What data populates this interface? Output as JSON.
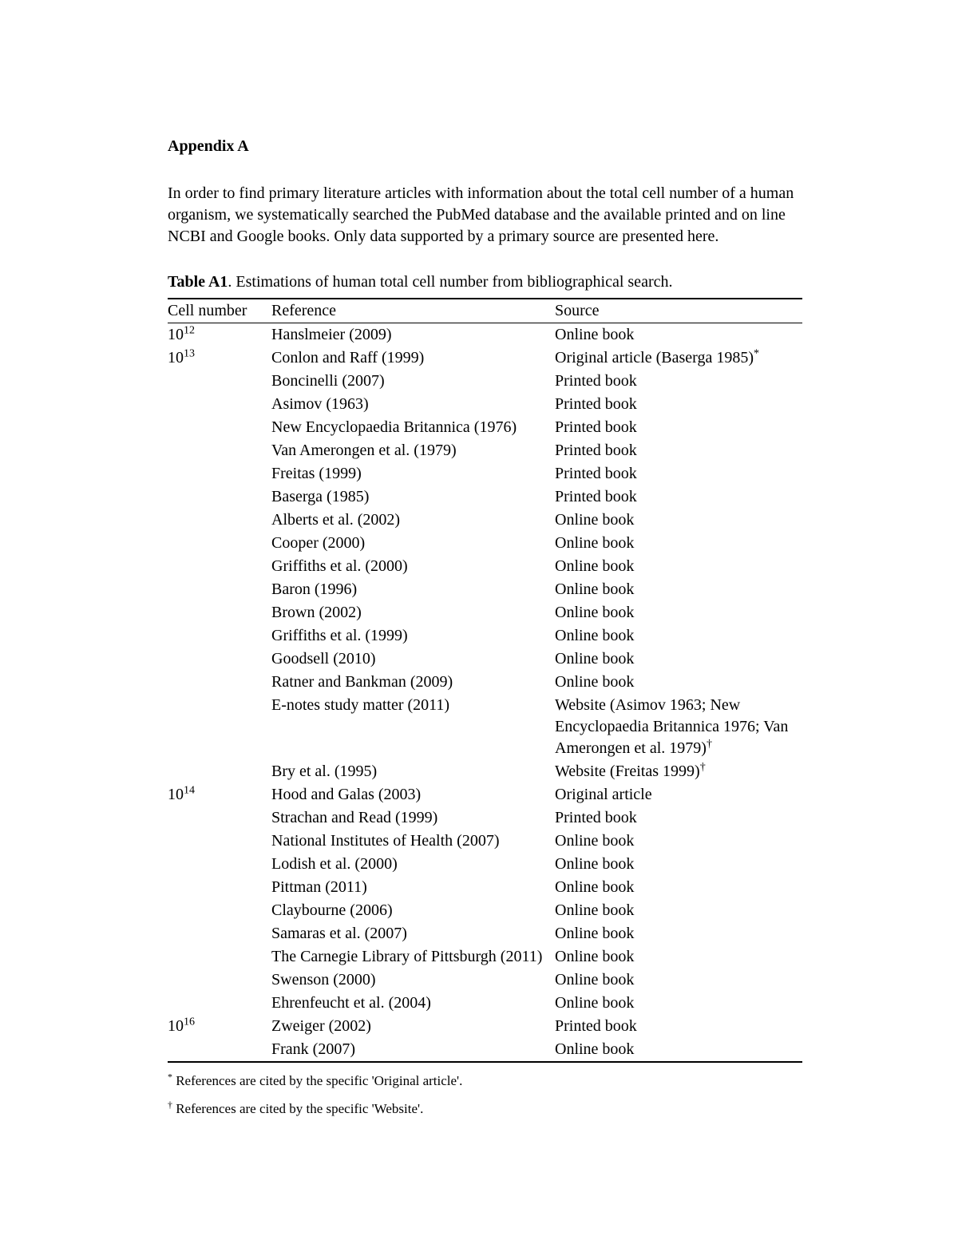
{
  "heading": "Appendix A",
  "intro": "In order to find primary literature articles with information about the total cell number of a human organism, we systematically searched the PubMed database and the available printed and on line NCBI and Google books. Only data supported by a primary source are presented here.",
  "table": {
    "caption_label": "Table A1",
    "caption_text": ". Estimations of human total cell number from bibliographical search.",
    "columns": [
      "Cell number",
      "Reference",
      "Source"
    ],
    "rows": [
      {
        "cell_base": "10",
        "cell_exp": "12",
        "reference": "Hanslmeier (2009)",
        "source": "Online book"
      },
      {
        "cell_base": "10",
        "cell_exp": "13",
        "reference": "Conlon and Raff (1999)",
        "source": "Original article (Baserga 1985)",
        "source_sup": "*"
      },
      {
        "cell_base": "",
        "cell_exp": "",
        "reference": "Boncinelli (2007)",
        "source": "Printed book"
      },
      {
        "cell_base": "",
        "cell_exp": "",
        "reference": "Asimov (1963)",
        "source": "Printed book"
      },
      {
        "cell_base": "",
        "cell_exp": "",
        "reference": "New Encyclopaedia Britannica (1976)",
        "source": "Printed book"
      },
      {
        "cell_base": "",
        "cell_exp": "",
        "reference": "Van Amerongen et al. (1979)",
        "source": "Printed book"
      },
      {
        "cell_base": "",
        "cell_exp": "",
        "reference": "Freitas (1999)",
        "source": "Printed book"
      },
      {
        "cell_base": "",
        "cell_exp": "",
        "reference": "Baserga (1985)",
        "source": "Printed book"
      },
      {
        "cell_base": "",
        "cell_exp": "",
        "reference": "Alberts et al. (2002)",
        "source": "Online book"
      },
      {
        "cell_base": "",
        "cell_exp": "",
        "reference": "Cooper (2000)",
        "source": "Online book"
      },
      {
        "cell_base": "",
        "cell_exp": "",
        "reference": "Griffiths et al. (2000)",
        "source": "Online book"
      },
      {
        "cell_base": "",
        "cell_exp": "",
        "reference": "Baron (1996)",
        "source": "Online book"
      },
      {
        "cell_base": "",
        "cell_exp": "",
        "reference": "Brown (2002)",
        "source": "Online book"
      },
      {
        "cell_base": "",
        "cell_exp": "",
        "reference": "Griffiths et al. (1999)",
        "source": "Online book"
      },
      {
        "cell_base": "",
        "cell_exp": "",
        "reference": "Goodsell (2010)",
        "source": "Online book"
      },
      {
        "cell_base": "",
        "cell_exp": "",
        "reference": "Ratner and Bankman (2009)",
        "source": "Online book"
      },
      {
        "cell_base": "",
        "cell_exp": "",
        "reference": "E-notes study matter (2011)",
        "source": "Website (Asimov 1963; New Encyclopaedia Britannica 1976; Van Amerongen et al. 1979)",
        "source_sup": "†"
      },
      {
        "cell_base": "",
        "cell_exp": "",
        "reference": "Bry et al. (1995)",
        "source": "Website (Freitas 1999)",
        "source_sup": "†"
      },
      {
        "cell_base": "10",
        "cell_exp": "14",
        "reference": "Hood and Galas (2003)",
        "source": "Original article"
      },
      {
        "cell_base": "",
        "cell_exp": "",
        "reference": "Strachan and Read (1999)",
        "source": "Printed book"
      },
      {
        "cell_base": "",
        "cell_exp": "",
        "reference": "National Institutes of Health (2007)",
        "source": "Online book"
      },
      {
        "cell_base": "",
        "cell_exp": "",
        "reference": "Lodish et al. (2000)",
        "source": "Online book"
      },
      {
        "cell_base": "",
        "cell_exp": "",
        "reference": "Pittman (2011)",
        "source": "Online book"
      },
      {
        "cell_base": "",
        "cell_exp": "",
        "reference": "Claybourne (2006)",
        "source": "Online book"
      },
      {
        "cell_base": "",
        "cell_exp": "",
        "reference": "Samaras et al. (2007)",
        "source": "Online book"
      },
      {
        "cell_base": "",
        "cell_exp": "",
        "reference": "The Carnegie Library of Pittsburgh (2011)",
        "source": "Online book"
      },
      {
        "cell_base": "",
        "cell_exp": "",
        "reference": "Swenson (2000)",
        "source": "Online book"
      },
      {
        "cell_base": "",
        "cell_exp": "",
        "reference": "Ehrenfeucht et al. (2004)",
        "source": "Online book"
      },
      {
        "cell_base": "10",
        "cell_exp": "16",
        "reference": "Zweiger (2002)",
        "source": "Printed book"
      },
      {
        "cell_base": "",
        "cell_exp": "",
        "reference": "Frank (2007)",
        "source": "Online book"
      }
    ]
  },
  "footnotes": [
    {
      "marker": "*",
      "text": " References are cited by the specific 'Original article'."
    },
    {
      "marker": "†",
      "text": " References are cited by the specific 'Website'."
    }
  ]
}
